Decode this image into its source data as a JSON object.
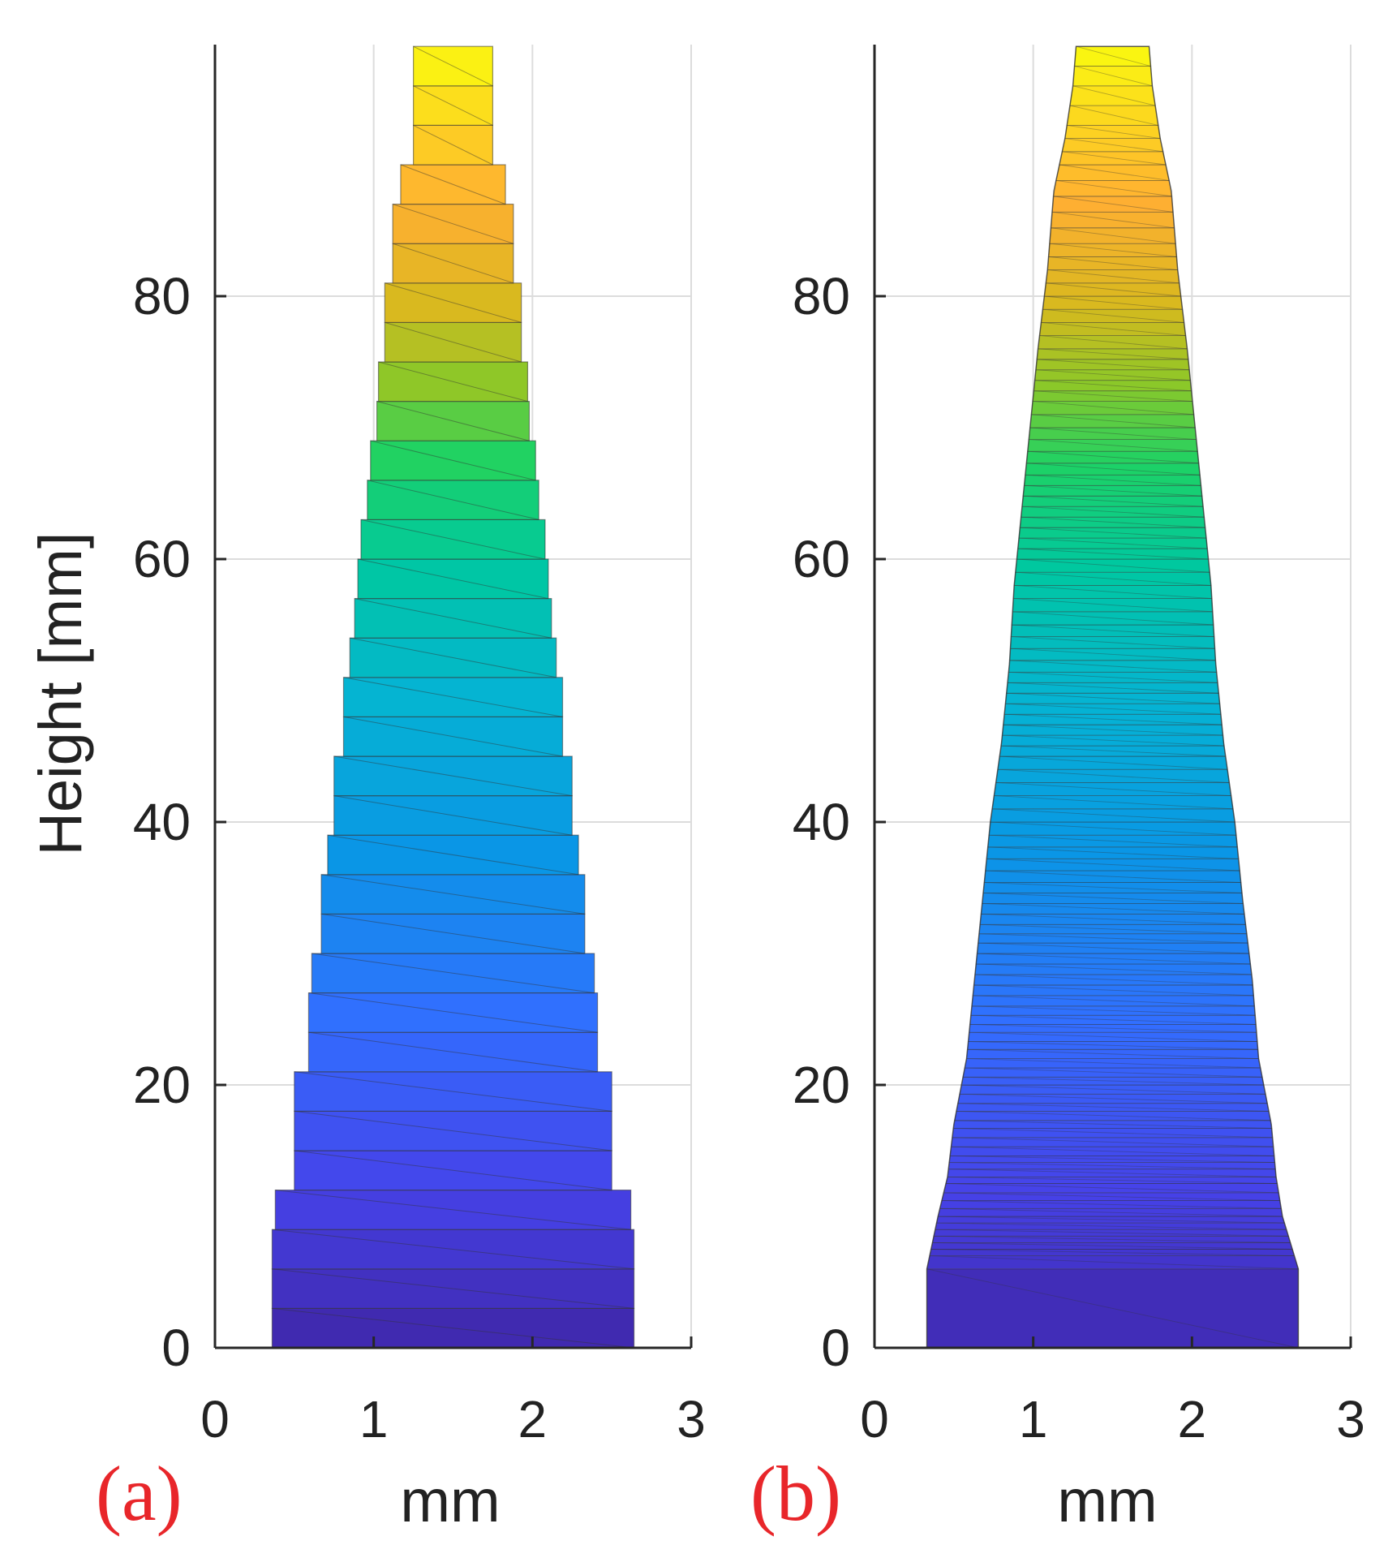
{
  "chart_data": [
    {
      "type": "area",
      "panel_label": "(a)",
      "xlabel": "mm",
      "ylabel": "Height [mm]",
      "xlim": [
        0,
        3
      ],
      "ylim": [
        0,
        99
      ],
      "xticks": [
        "0",
        "1",
        "2",
        "3"
      ],
      "yticks": [
        "0",
        "20",
        "40",
        "60",
        "80"
      ],
      "grid": true,
      "colormap": "parula",
      "layer_height_mm": 3,
      "layers": [
        {
          "y0": 0,
          "left": 0.36,
          "right": 2.64
        },
        {
          "y0": 3,
          "left": 0.36,
          "right": 2.64
        },
        {
          "y0": 6,
          "left": 0.36,
          "right": 2.64
        },
        {
          "y0": 9,
          "left": 0.38,
          "right": 2.62
        },
        {
          "y0": 12,
          "left": 0.5,
          "right": 2.5
        },
        {
          "y0": 15,
          "left": 0.5,
          "right": 2.5
        },
        {
          "y0": 18,
          "left": 0.5,
          "right": 2.5
        },
        {
          "y0": 21,
          "left": 0.59,
          "right": 2.41
        },
        {
          "y0": 24,
          "left": 0.59,
          "right": 2.41
        },
        {
          "y0": 27,
          "left": 0.61,
          "right": 2.39
        },
        {
          "y0": 30,
          "left": 0.67,
          "right": 2.33
        },
        {
          "y0": 33,
          "left": 0.67,
          "right": 2.33
        },
        {
          "y0": 36,
          "left": 0.71,
          "right": 2.29
        },
        {
          "y0": 39,
          "left": 0.75,
          "right": 2.25
        },
        {
          "y0": 42,
          "left": 0.75,
          "right": 2.25
        },
        {
          "y0": 45,
          "left": 0.81,
          "right": 2.19
        },
        {
          "y0": 48,
          "left": 0.81,
          "right": 2.19
        },
        {
          "y0": 51,
          "left": 0.85,
          "right": 2.15
        },
        {
          "y0": 54,
          "left": 0.88,
          "right": 2.12
        },
        {
          "y0": 57,
          "left": 0.9,
          "right": 2.1
        },
        {
          "y0": 60,
          "left": 0.92,
          "right": 2.08
        },
        {
          "y0": 63,
          "left": 0.96,
          "right": 2.04
        },
        {
          "y0": 66,
          "left": 0.98,
          "right": 2.02
        },
        {
          "y0": 69,
          "left": 1.02,
          "right": 1.98
        },
        {
          "y0": 72,
          "left": 1.03,
          "right": 1.97
        },
        {
          "y0": 75,
          "left": 1.07,
          "right": 1.93
        },
        {
          "y0": 78,
          "left": 1.07,
          "right": 1.93
        },
        {
          "y0": 81,
          "left": 1.12,
          "right": 1.88
        },
        {
          "y0": 84,
          "left": 1.12,
          "right": 1.88
        },
        {
          "y0": 87,
          "left": 1.17,
          "right": 1.83
        },
        {
          "y0": 90,
          "left": 1.25,
          "right": 1.75
        },
        {
          "y0": 93,
          "left": 1.25,
          "right": 1.75
        },
        {
          "y0": 96,
          "left": 1.25,
          "right": 1.75
        }
      ]
    },
    {
      "type": "area",
      "panel_label": "(b)",
      "xlabel": "mm",
      "ylabel": "",
      "xlim": [
        0,
        3
      ],
      "ylim": [
        0,
        99
      ],
      "xticks": [
        "0",
        "1",
        "2",
        "3"
      ],
      "yticks": [
        "0",
        "20",
        "40",
        "60",
        "80"
      ],
      "grid": true,
      "colormap": "parula",
      "outline": [
        {
          "y": 0,
          "left": 0.33,
          "right": 2.67
        },
        {
          "y": 6,
          "left": 0.33,
          "right": 2.67
        },
        {
          "y": 10,
          "left": 0.4,
          "right": 2.57
        },
        {
          "y": 13,
          "left": 0.46,
          "right": 2.53
        },
        {
          "y": 17,
          "left": 0.5,
          "right": 2.5
        },
        {
          "y": 22,
          "left": 0.58,
          "right": 2.42
        },
        {
          "y": 28,
          "left": 0.63,
          "right": 2.38
        },
        {
          "y": 34,
          "left": 0.68,
          "right": 2.32
        },
        {
          "y": 40,
          "left": 0.73,
          "right": 2.27
        },
        {
          "y": 46,
          "left": 0.8,
          "right": 2.2
        },
        {
          "y": 52,
          "left": 0.85,
          "right": 2.15
        },
        {
          "y": 58,
          "left": 0.88,
          "right": 2.12
        },
        {
          "y": 64,
          "left": 0.93,
          "right": 2.07
        },
        {
          "y": 70,
          "left": 0.98,
          "right": 2.02
        },
        {
          "y": 76,
          "left": 1.03,
          "right": 1.97
        },
        {
          "y": 82,
          "left": 1.09,
          "right": 1.91
        },
        {
          "y": 88,
          "left": 1.13,
          "right": 1.87
        },
        {
          "y": 92,
          "left": 1.2,
          "right": 1.8
        },
        {
          "y": 96,
          "left": 1.25,
          "right": 1.75
        },
        {
          "y": 99,
          "left": 1.27,
          "right": 1.73
        }
      ],
      "layer_boundaries": [
        6,
        7,
        7.5,
        8,
        8.5,
        9,
        9.5,
        10,
        10.6,
        11.2,
        11.8,
        12.5,
        13,
        13.6,
        14.1,
        14.6,
        15.3,
        16,
        16.7,
        17.3,
        18,
        18.6,
        19.3,
        20,
        20.6,
        21.3,
        22,
        22.7,
        23.3,
        24,
        24.6,
        25.3,
        26,
        26.8,
        27.6,
        28.4,
        29.2,
        30,
        30.8,
        31.5,
        32.2,
        33,
        33.8,
        34.6,
        35.4,
        36.3,
        37.2,
        38.1,
        39,
        40,
        41,
        42,
        43,
        44,
        45,
        45.8,
        46.6,
        47.4,
        48.2,
        49,
        49.8,
        50.6,
        51.4,
        52.3,
        53.2,
        54.1,
        55,
        56,
        57,
        58,
        59,
        60,
        60.8,
        61.6,
        62.4,
        63.2,
        64,
        64.8,
        65.6,
        66.4,
        67.3,
        68.2,
        69.1,
        70,
        71,
        72,
        72.8,
        73.6,
        74.4,
        75.2,
        76,
        77,
        78,
        79,
        80,
        81,
        82,
        83,
        84,
        85.2,
        86.4,
        87.6,
        88.8,
        90,
        91,
        92,
        93,
        94.5,
        96,
        97.5
      ]
    }
  ]
}
